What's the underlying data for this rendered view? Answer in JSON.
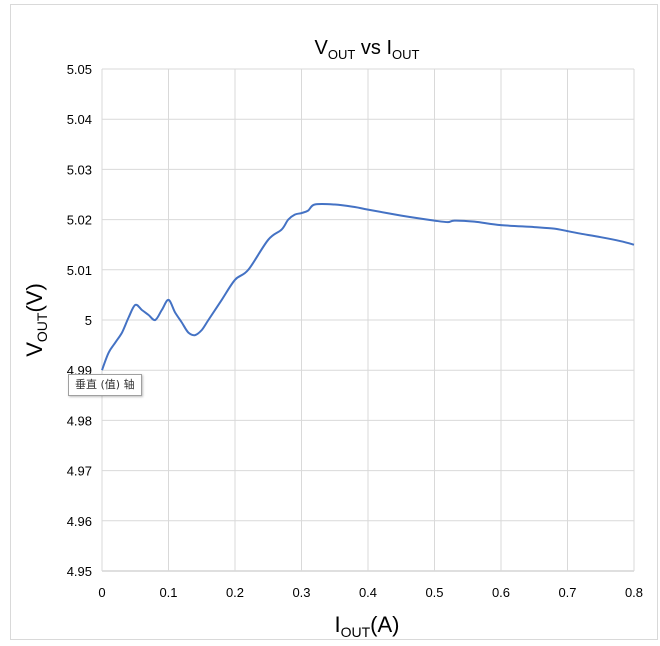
{
  "chart_data": {
    "type": "line",
    "title": {
      "main": "V",
      "sub": "OUT",
      "mid": " vs ",
      "main2": "I",
      "sub2": "OUT"
    },
    "xlabel": {
      "main": "I",
      "sub": "OUT",
      "suffix": "(A)"
    },
    "ylabel": {
      "main": "V",
      "sub": "OUT",
      "suffix": "(V)"
    },
    "xlim": [
      0,
      0.8
    ],
    "ylim": [
      4.95,
      5.05
    ],
    "x_ticks": [
      "0",
      "0.1",
      "0.2",
      "0.3",
      "0.4",
      "0.5",
      "0.6",
      "0.7",
      "0.8"
    ],
    "y_ticks": [
      "4.95",
      "4.96",
      "4.97",
      "4.98",
      "4.99",
      "5",
      "5.01",
      "5.02",
      "5.03",
      "5.04",
      "5.05"
    ],
    "grid": "vertical and horizontal",
    "legend": "none",
    "series": [
      {
        "color": "#4472C4",
        "x": [
          0,
          0.01,
          0.02,
          0.03,
          0.04,
          0.05,
          0.06,
          0.07,
          0.08,
          0.09,
          0.1,
          0.11,
          0.12,
          0.13,
          0.14,
          0.15,
          0.16,
          0.18,
          0.2,
          0.22,
          0.25,
          0.27,
          0.28,
          0.29,
          0.3,
          0.31,
          0.32,
          0.35,
          0.38,
          0.4,
          0.45,
          0.5,
          0.52,
          0.53,
          0.56,
          0.6,
          0.65,
          0.68,
          0.7,
          0.72,
          0.75,
          0.78,
          0.8
        ],
        "y": [
          4.99,
          4.9935,
          4.9955,
          4.9975,
          5.0005,
          5.003,
          5.002,
          5.001,
          5.0,
          5.002,
          5.004,
          5.0015,
          4.9995,
          4.9975,
          4.997,
          4.998,
          5.0,
          5.004,
          5.008,
          5.01,
          5.016,
          5.018,
          5.02,
          5.021,
          5.0213,
          5.0218,
          5.023,
          5.023,
          5.0225,
          5.022,
          5.0208,
          5.0198,
          5.0195,
          5.0198,
          5.0196,
          5.0189,
          5.0185,
          5.0182,
          5.0177,
          5.0172,
          5.0165,
          5.0157,
          5.015
        ]
      }
    ]
  },
  "tooltip": {
    "text": "垂直 (值) 轴"
  }
}
